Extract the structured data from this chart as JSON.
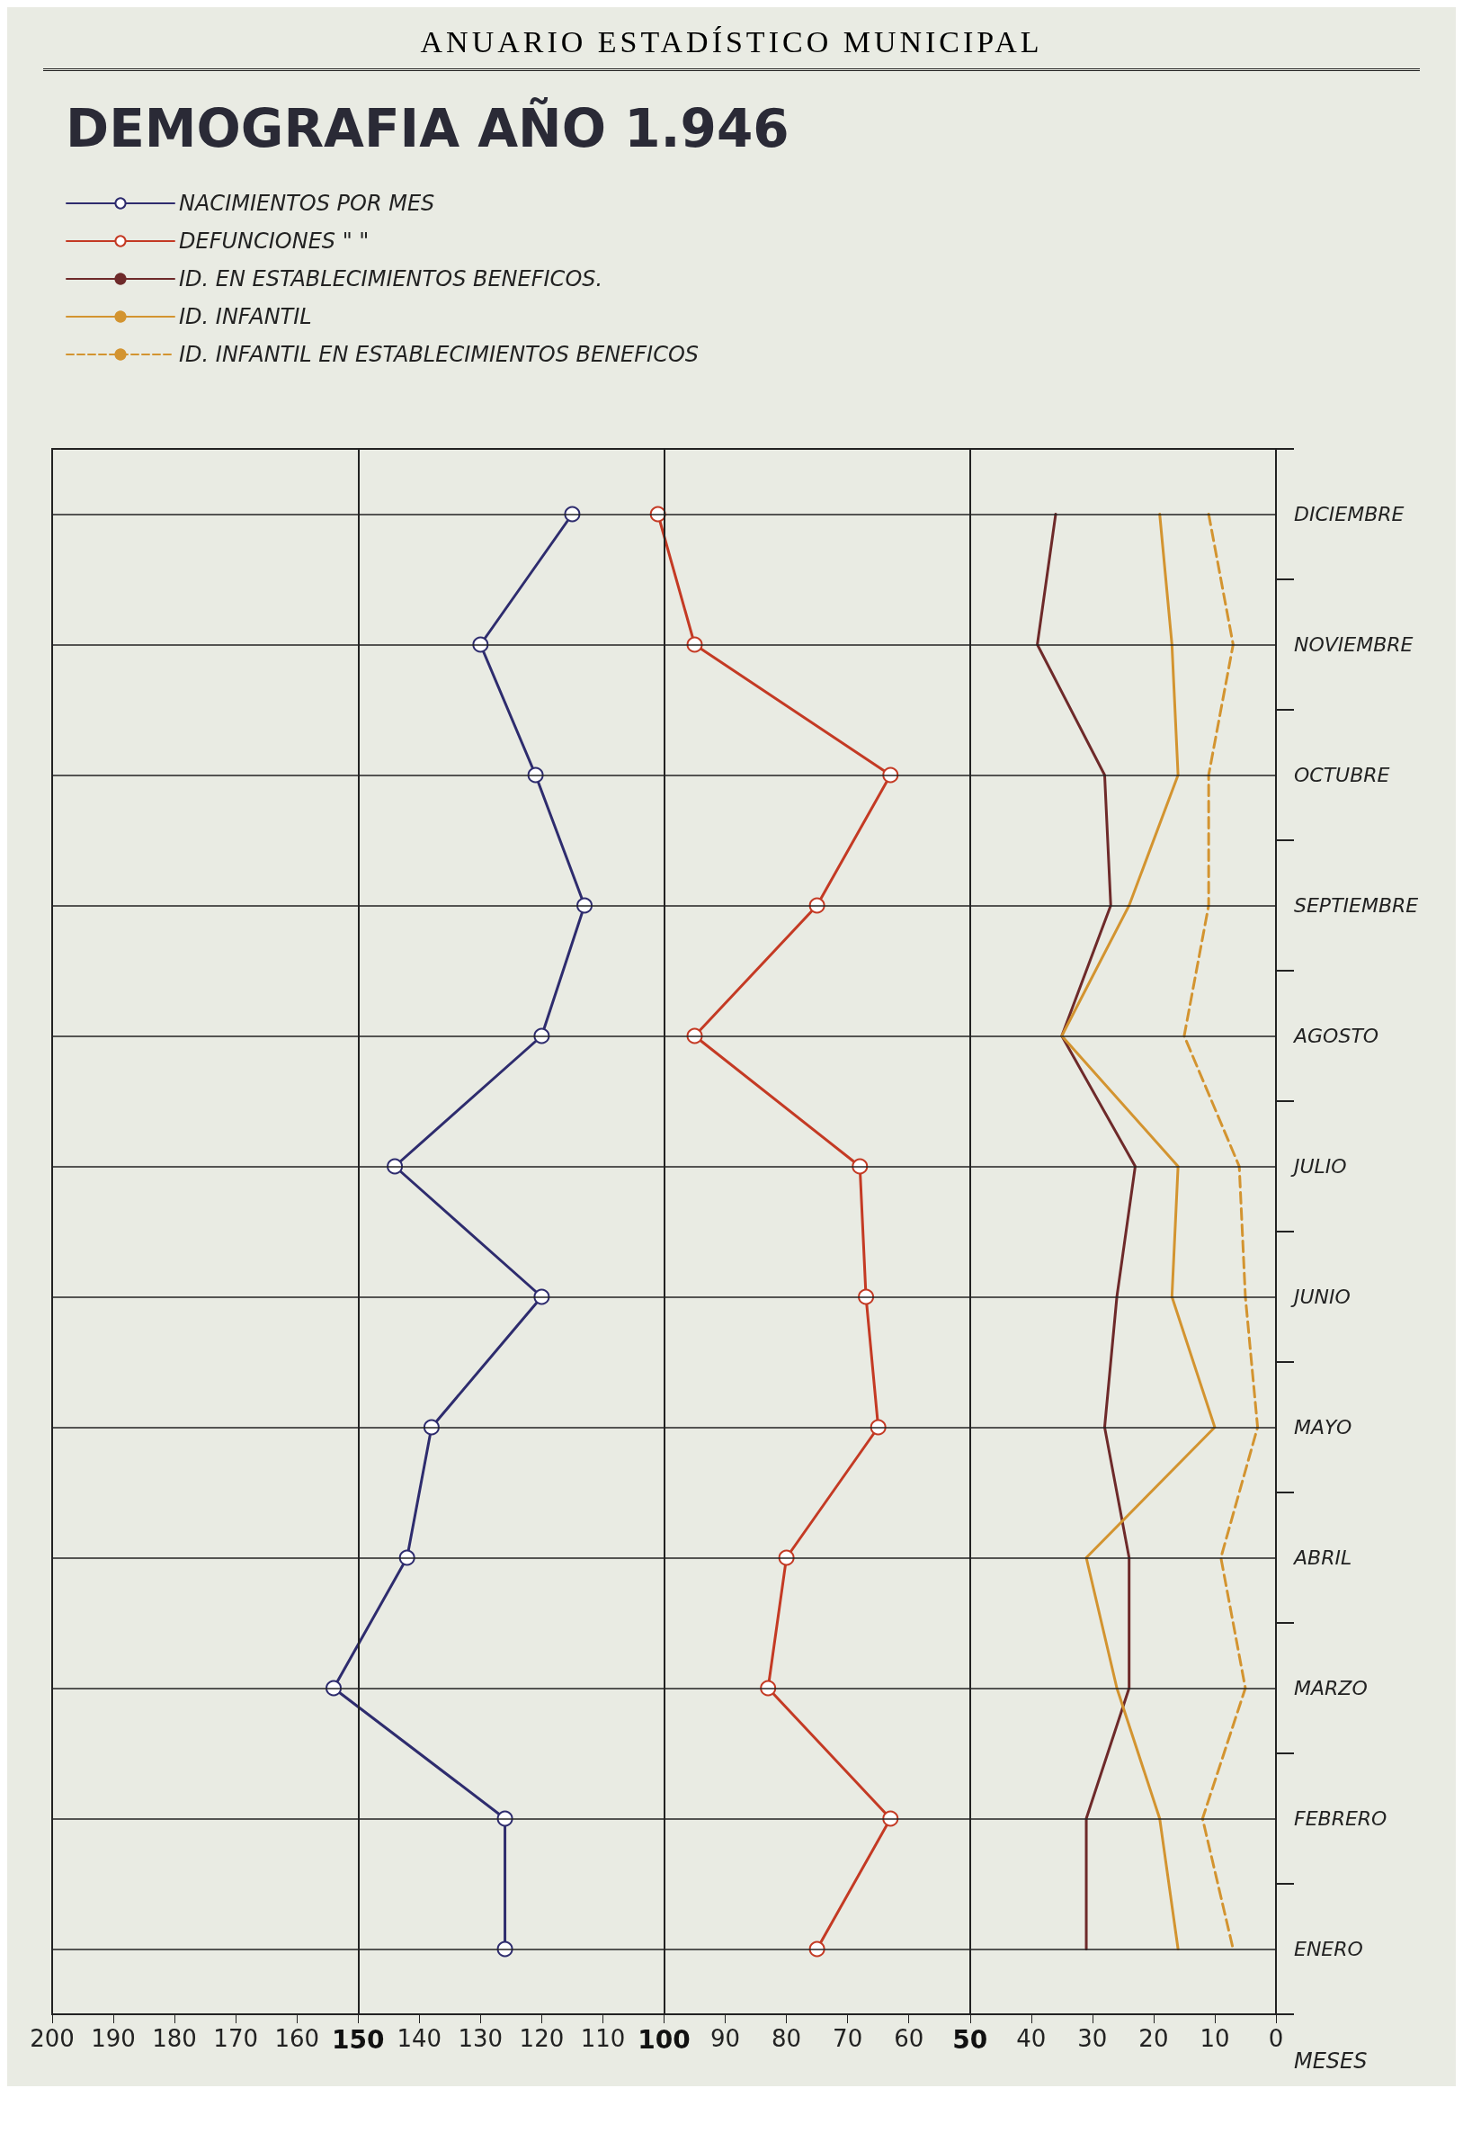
{
  "chart_data": {
    "type": "line",
    "orientation": "horizontal",
    "title": "DEMOGRAFIA AÑO 1.946",
    "ylabel": "MESES",
    "annotations": [
      "ANUARIO ESTADÍSTICO MUNICIPAL"
    ],
    "categories": [
      "DICIEMBRE",
      "NOVIEMBRE",
      "OCTUBRE",
      "SEPTIEMBRE",
      "AGOSTO",
      "JULIO",
      "JUNIO",
      "MAYO",
      "ABRIL",
      "MARZO",
      "FEBRERO",
      "ENERO"
    ],
    "series": [
      {
        "name": "NACIMIENTOS POR MES",
        "color": "#2e2c6e",
        "marker": "circle",
        "values": [
          115,
          130,
          121,
          113,
          120,
          144,
          120,
          138,
          142,
          154,
          126,
          126
        ]
      },
      {
        "name": "DEFUNCIONES \" \"",
        "color": "#c43a24",
        "marker": "circle",
        "values": [
          101,
          95,
          63,
          75,
          95,
          68,
          67,
          65,
          80,
          83,
          63,
          75
        ]
      },
      {
        "name": "ID. EN ESTABLECIMIENTOS BENEFICOS.",
        "color": "#6e2a2a",
        "marker": "none",
        "values": [
          36,
          39,
          28,
          27,
          35,
          23,
          26,
          28,
          24,
          24,
          31,
          31
        ]
      },
      {
        "name": "ID. INFANTIL",
        "color": "#d39430",
        "marker": "none",
        "values": [
          19,
          17,
          16,
          24,
          35,
          16,
          17,
          10,
          31,
          26,
          19,
          16
        ]
      },
      {
        "name": "ID. INFANTIL EN ESTABLECIMIENTOS BENEFICOS",
        "color": "#d39430",
        "marker": "none",
        "line_style": "dashed",
        "values": [
          11,
          7,
          11,
          11,
          15,
          6,
          5,
          3,
          9,
          5,
          12,
          7
        ]
      }
    ],
    "xlim": [
      200,
      0
    ],
    "xticks": [
      200,
      190,
      180,
      170,
      160,
      150,
      140,
      130,
      120,
      110,
      100,
      90,
      80,
      70,
      60,
      50,
      40,
      30,
      20,
      10,
      0
    ],
    "grid": "y",
    "legend": "top left",
    "ref_lines": [
      {
        "axis": "x",
        "value": 150
      },
      {
        "axis": "x",
        "value": 100
      },
      {
        "axis": "x",
        "value": 50
      }
    ]
  }
}
